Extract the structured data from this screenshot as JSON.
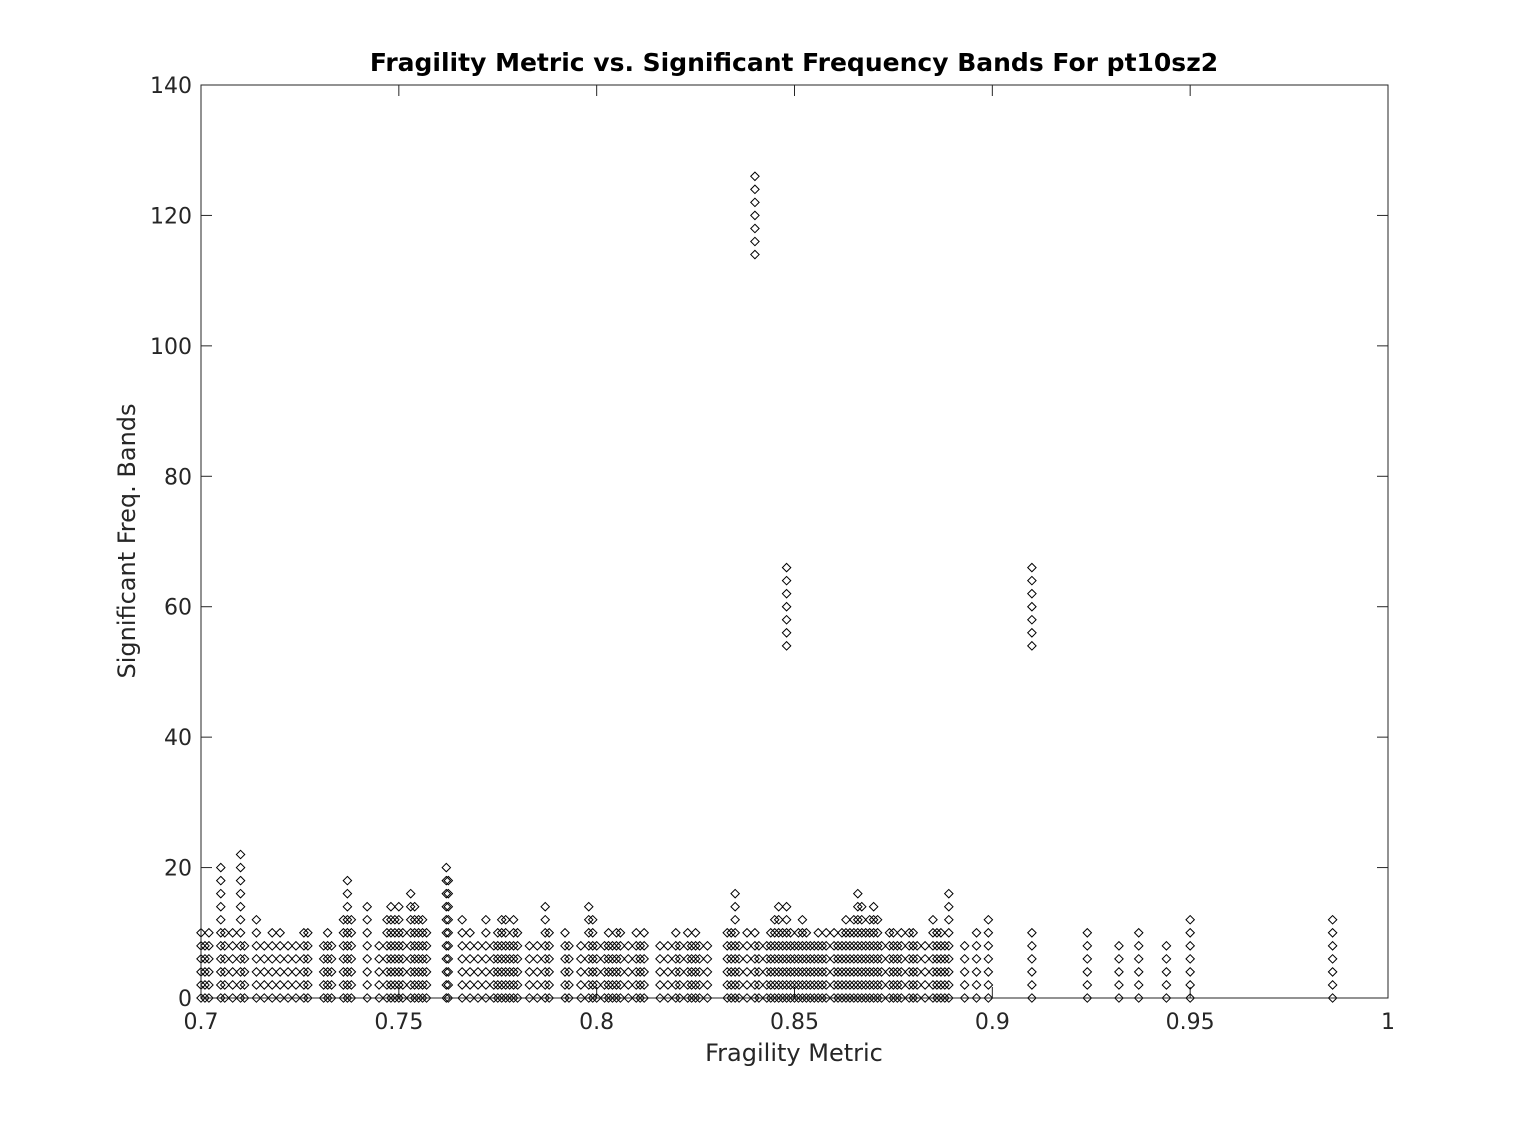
{
  "chart_data": {
    "type": "scatter",
    "title": "Fragility Metric vs. Significant Frequency Bands For pt10sz2",
    "xlabel": "Fragility Metric",
    "ylabel": "Significant Freq. Bands",
    "xlim": [
      0.7,
      1.0
    ],
    "ylim": [
      0,
      140
    ],
    "xticks": [
      0.7,
      0.75,
      0.8,
      0.85,
      0.9,
      0.95,
      1.0
    ],
    "xtick_labels": [
      "0.7",
      "0.75",
      "0.8",
      "0.85",
      "0.9",
      "0.95",
      "1"
    ],
    "yticks": [
      0,
      20,
      40,
      60,
      80,
      100,
      120,
      140
    ],
    "ytick_labels": [
      "0",
      "20",
      "40",
      "60",
      "80",
      "100",
      "120",
      "140"
    ],
    "grid": false,
    "legend": "none",
    "marker": "diamond",
    "marker_color": "#000000",
    "columns": [
      {
        "x": 0.7,
        "ymax": 10
      },
      {
        "x": 0.701,
        "ymax": 8
      },
      {
        "x": 0.702,
        "ymax": 10
      },
      {
        "x": 0.705,
        "ymax": 20
      },
      {
        "x": 0.706,
        "ymax": 10
      },
      {
        "x": 0.708,
        "ymax": 10
      },
      {
        "x": 0.71,
        "ymax": 22
      },
      {
        "x": 0.711,
        "ymax": 8
      },
      {
        "x": 0.714,
        "ymax": 12
      },
      {
        "x": 0.716,
        "ymax": 8
      },
      {
        "x": 0.718,
        "ymax": 10
      },
      {
        "x": 0.72,
        "ymax": 10
      },
      {
        "x": 0.722,
        "ymax": 8
      },
      {
        "x": 0.724,
        "ymax": 8
      },
      {
        "x": 0.726,
        "ymax": 10
      },
      {
        "x": 0.727,
        "ymax": 10
      },
      {
        "x": 0.731,
        "ymax": 8
      },
      {
        "x": 0.732,
        "ymax": 10
      },
      {
        "x": 0.733,
        "ymax": 8
      },
      {
        "x": 0.736,
        "ymax": 12
      },
      {
        "x": 0.737,
        "ymax": 18
      },
      {
        "x": 0.738,
        "ymax": 12
      },
      {
        "x": 0.742,
        "ymax": 14
      },
      {
        "x": 0.745,
        "ymax": 8
      },
      {
        "x": 0.747,
        "ymax": 12
      },
      {
        "x": 0.748,
        "ymax": 14
      },
      {
        "x": 0.749,
        "ymax": 12
      },
      {
        "x": 0.75,
        "ymax": 14
      },
      {
        "x": 0.751,
        "ymax": 10
      },
      {
        "x": 0.753,
        "ymax": 16
      },
      {
        "x": 0.754,
        "ymax": 14
      },
      {
        "x": 0.755,
        "ymax": 12
      },
      {
        "x": 0.756,
        "ymax": 12
      },
      {
        "x": 0.757,
        "ymax": 10
      },
      {
        "x": 0.762,
        "ymax": 20
      },
      {
        "x": 0.7625,
        "ymax": 18
      },
      {
        "x": 0.766,
        "ymax": 12
      },
      {
        "x": 0.768,
        "ymax": 10
      },
      {
        "x": 0.77,
        "ymax": 8
      },
      {
        "x": 0.772,
        "ymax": 12
      },
      {
        "x": 0.774,
        "ymax": 8
      },
      {
        "x": 0.775,
        "ymax": 10
      },
      {
        "x": 0.776,
        "ymax": 12
      },
      {
        "x": 0.777,
        "ymax": 12
      },
      {
        "x": 0.778,
        "ymax": 8
      },
      {
        "x": 0.779,
        "ymax": 12
      },
      {
        "x": 0.78,
        "ymax": 10
      },
      {
        "x": 0.783,
        "ymax": 8
      },
      {
        "x": 0.785,
        "ymax": 8
      },
      {
        "x": 0.787,
        "ymax": 14
      },
      {
        "x": 0.788,
        "ymax": 10
      },
      {
        "x": 0.792,
        "ymax": 10
      },
      {
        "x": 0.793,
        "ymax": 8
      },
      {
        "x": 0.796,
        "ymax": 8
      },
      {
        "x": 0.798,
        "ymax": 14
      },
      {
        "x": 0.799,
        "ymax": 12
      },
      {
        "x": 0.8,
        "ymax": 8
      },
      {
        "x": 0.802,
        "ymax": 8
      },
      {
        "x": 0.803,
        "ymax": 10
      },
      {
        "x": 0.804,
        "ymax": 8
      },
      {
        "x": 0.805,
        "ymax": 10
      },
      {
        "x": 0.806,
        "ymax": 10
      },
      {
        "x": 0.808,
        "ymax": 8
      },
      {
        "x": 0.81,
        "ymax": 10
      },
      {
        "x": 0.811,
        "ymax": 8
      },
      {
        "x": 0.812,
        "ymax": 10
      },
      {
        "x": 0.816,
        "ymax": 8
      },
      {
        "x": 0.818,
        "ymax": 8
      },
      {
        "x": 0.82,
        "ymax": 10
      },
      {
        "x": 0.821,
        "ymax": 8
      },
      {
        "x": 0.823,
        "ymax": 10
      },
      {
        "x": 0.824,
        "ymax": 8
      },
      {
        "x": 0.825,
        "ymax": 10
      },
      {
        "x": 0.826,
        "ymax": 8
      },
      {
        "x": 0.828,
        "ymax": 8
      },
      {
        "x": 0.833,
        "ymax": 10
      },
      {
        "x": 0.834,
        "ymax": 10
      },
      {
        "x": 0.835,
        "ymax": 16
      },
      {
        "x": 0.836,
        "ymax": 8
      },
      {
        "x": 0.838,
        "ymax": 10
      },
      {
        "x": 0.84,
        "ymax": 10
      },
      {
        "x": 0.841,
        "ymax": 8
      },
      {
        "x": 0.843,
        "ymax": 8
      },
      {
        "x": 0.844,
        "ymax": 10
      },
      {
        "x": 0.845,
        "ymax": 12
      },
      {
        "x": 0.846,
        "ymax": 14
      },
      {
        "x": 0.847,
        "ymax": 10
      },
      {
        "x": 0.848,
        "ymax": 14
      },
      {
        "x": 0.849,
        "ymax": 10
      },
      {
        "x": 0.85,
        "ymax": 8
      },
      {
        "x": 0.851,
        "ymax": 10
      },
      {
        "x": 0.852,
        "ymax": 12
      },
      {
        "x": 0.853,
        "ymax": 10
      },
      {
        "x": 0.854,
        "ymax": 8
      },
      {
        "x": 0.855,
        "ymax": 8
      },
      {
        "x": 0.856,
        "ymax": 10
      },
      {
        "x": 0.857,
        "ymax": 8
      },
      {
        "x": 0.858,
        "ymax": 10
      },
      {
        "x": 0.86,
        "ymax": 10
      },
      {
        "x": 0.861,
        "ymax": 8
      },
      {
        "x": 0.862,
        "ymax": 10
      },
      {
        "x": 0.863,
        "ymax": 12
      },
      {
        "x": 0.864,
        "ymax": 10
      },
      {
        "x": 0.865,
        "ymax": 12
      },
      {
        "x": 0.866,
        "ymax": 16
      },
      {
        "x": 0.867,
        "ymax": 14
      },
      {
        "x": 0.868,
        "ymax": 10
      },
      {
        "x": 0.869,
        "ymax": 12
      },
      {
        "x": 0.87,
        "ymax": 14
      },
      {
        "x": 0.871,
        "ymax": 12
      },
      {
        "x": 0.872,
        "ymax": 8
      },
      {
        "x": 0.874,
        "ymax": 10
      },
      {
        "x": 0.875,
        "ymax": 10
      },
      {
        "x": 0.876,
        "ymax": 8
      },
      {
        "x": 0.877,
        "ymax": 10
      },
      {
        "x": 0.879,
        "ymax": 10
      },
      {
        "x": 0.88,
        "ymax": 10
      },
      {
        "x": 0.881,
        "ymax": 8
      },
      {
        "x": 0.883,
        "ymax": 8
      },
      {
        "x": 0.885,
        "ymax": 12
      },
      {
        "x": 0.886,
        "ymax": 10
      },
      {
        "x": 0.887,
        "ymax": 10
      },
      {
        "x": 0.888,
        "ymax": 8
      },
      {
        "x": 0.889,
        "ymax": 16
      },
      {
        "x": 0.893,
        "ymax": 8
      },
      {
        "x": 0.896,
        "ymax": 10
      },
      {
        "x": 0.899,
        "ymax": 12
      },
      {
        "x": 0.91,
        "ymax": 10
      },
      {
        "x": 0.924,
        "ymax": 10
      },
      {
        "x": 0.932,
        "ymax": 8
      },
      {
        "x": 0.937,
        "ymax": 10
      },
      {
        "x": 0.944,
        "ymax": 8
      },
      {
        "x": 0.95,
        "ymax": 12
      },
      {
        "x": 0.986,
        "ymax": 12
      }
    ],
    "upper_clusters": [
      {
        "x": 0.84,
        "y": [
          114,
          116,
          118,
          120,
          122,
          124,
          126
        ]
      },
      {
        "x": 0.848,
        "y": [
          54,
          56,
          58,
          60,
          62,
          64,
          66
        ]
      },
      {
        "x": 0.91,
        "y": [
          54,
          56,
          58,
          60,
          62,
          64,
          66
        ]
      }
    ]
  }
}
